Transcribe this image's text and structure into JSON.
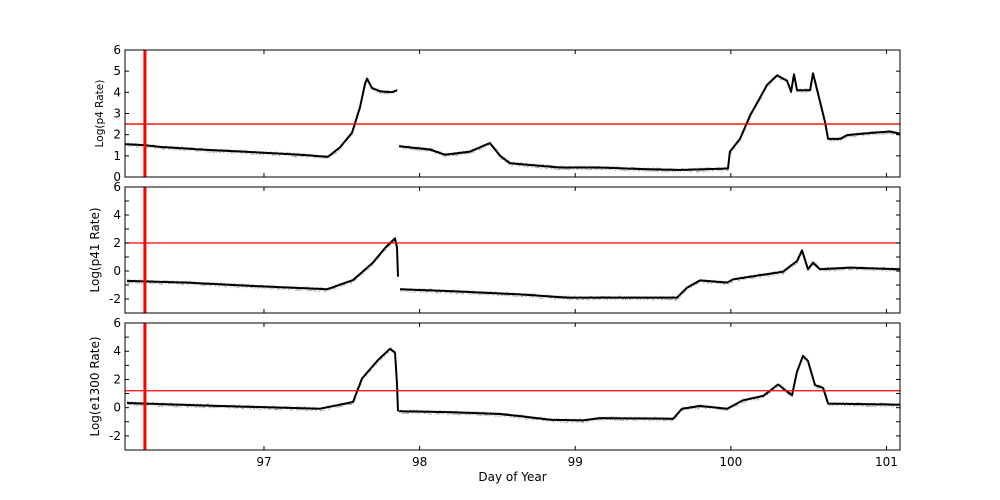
{
  "chart_data": [
    {
      "type": "line",
      "ylabel": "Log(p4 Rate)",
      "xlim": [
        96.107,
        101.087
      ],
      "ylim": [
        0,
        6
      ],
      "yticks": [
        0,
        1,
        2,
        3,
        4,
        5,
        6
      ],
      "ytick_labels": [
        "0",
        "1",
        "2",
        "3",
        "4",
        "5",
        "6"
      ],
      "xticks": [
        97,
        98,
        99,
        100,
        101
      ],
      "threshold_y": 2.5,
      "marker_x": 96.235,
      "series": [
        {
          "segments": [
            [
              [
                96.107,
                1.55
              ],
              [
                96.235,
                1.5
              ],
              [
                96.332,
                1.42
              ],
              [
                96.589,
                1.3
              ],
              [
                97.0,
                1.15
              ],
              [
                97.231,
                1.05
              ],
              [
                97.411,
                0.95
              ],
              [
                97.488,
                1.4
              ],
              [
                97.566,
                2.1
              ],
              [
                97.617,
                3.3
              ],
              [
                97.649,
                4.4
              ],
              [
                97.662,
                4.65
              ],
              [
                97.694,
                4.2
              ],
              [
                97.746,
                4.05
              ],
              [
                97.823,
                4.0
              ],
              [
                97.855,
                4.1
              ]
            ],
            [
              [
                97.868,
                1.45
              ],
              [
                98.067,
                1.3
              ],
              [
                98.163,
                1.05
              ],
              [
                98.324,
                1.2
              ],
              [
                98.452,
                1.6
              ],
              [
                98.517,
                1.0
              ],
              [
                98.581,
                0.65
              ],
              [
                98.902,
                0.45
              ],
              [
                99.159,
                0.45
              ],
              [
                99.416,
                0.38
              ],
              [
                99.674,
                0.33
              ],
              [
                99.982,
                0.4
              ],
              [
                99.994,
                1.2
              ],
              [
                100.059,
                1.8
              ],
              [
                100.123,
                2.9
              ],
              [
                100.233,
                4.35
              ],
              [
                100.297,
                4.8
              ],
              [
                100.361,
                4.55
              ],
              [
                100.387,
                4.03
              ],
              [
                100.406,
                4.85
              ],
              [
                100.425,
                4.1
              ],
              [
                100.509,
                4.1
              ],
              [
                100.528,
                4.9
              ],
              [
                100.573,
                3.56
              ],
              [
                100.605,
                2.6
              ],
              [
                100.625,
                1.8
              ],
              [
                100.702,
                1.8
              ],
              [
                100.747,
                1.98
              ],
              [
                100.895,
                2.08
              ],
              [
                101.023,
                2.15
              ],
              [
                101.087,
                2.04
              ]
            ]
          ]
        }
      ]
    },
    {
      "type": "line",
      "ylabel": "Log(p41 Rate)",
      "xlim": [
        96.107,
        101.087
      ],
      "ylim": [
        -3,
        6
      ],
      "yticks": [
        -2,
        0,
        2,
        4,
        6
      ],
      "ytick_labels": [
        "-2",
        "0",
        "2",
        "4",
        "6"
      ],
      "xticks": [
        97,
        98,
        99,
        100,
        101
      ],
      "threshold_y": 2,
      "marker_x": 96.235,
      "series": [
        {
          "segments": [
            [
              [
                96.12,
                -0.71
              ],
              [
                96.505,
                -0.83
              ],
              [
                96.929,
                -1.07
              ],
              [
                97.405,
                -1.31
              ],
              [
                97.572,
                -0.65
              ],
              [
                97.7,
                0.6
              ],
              [
                97.78,
                1.67
              ],
              [
                97.842,
                2.33
              ],
              [
                97.855,
                1.67
              ],
              [
                97.861,
                -0.4
              ]
            ],
            [
              [
                97.874,
                -1.31
              ],
              [
                98.215,
                -1.45
              ],
              [
                98.645,
                -1.67
              ],
              [
                98.947,
                -1.9
              ],
              [
                99.654,
                -1.9
              ],
              [
                99.718,
                -1.19
              ],
              [
                99.802,
                -0.67
              ],
              [
                99.976,
                -0.83
              ],
              [
                100.014,
                -0.6
              ],
              [
                100.335,
                -0.05
              ],
              [
                100.425,
                0.71
              ],
              [
                100.457,
                1.48
              ],
              [
                100.496,
                0.12
              ],
              [
                100.528,
                0.6
              ],
              [
                100.573,
                0.12
              ],
              [
                100.766,
                0.24
              ],
              [
                101.087,
                0.12
              ]
            ]
          ]
        }
      ]
    },
    {
      "type": "line",
      "ylabel": "Log(e1300 Rate)",
      "xlabel": "Day of Year",
      "xlim": [
        96.107,
        101.087
      ],
      "ylim": [
        -3,
        6
      ],
      "yticks": [
        -2,
        0,
        2,
        4,
        6
      ],
      "ytick_labels": [
        "-2",
        "0",
        "2",
        "4",
        "6"
      ],
      "xticks": [
        97,
        98,
        99,
        100,
        101
      ],
      "xtick_labels": [
        "97",
        "98",
        "99",
        "100",
        "101"
      ],
      "threshold_y": 1.2,
      "marker_x": 96.235,
      "series": [
        {
          "segments": [
            [
              [
                96.12,
                0.33
              ],
              [
                96.717,
                0.12
              ],
              [
                97.36,
                -0.07
              ],
              [
                97.572,
                0.4
              ],
              [
                97.63,
                2.07
              ],
              [
                97.733,
                3.38
              ],
              [
                97.81,
                4.17
              ],
              [
                97.842,
                3.9
              ],
              [
                97.855,
                1.7
              ],
              [
                97.861,
                -0.26
              ]
            ],
            [
              [
                97.868,
                -0.26
              ],
              [
                98.215,
                -0.33
              ],
              [
                98.517,
                -0.45
              ],
              [
                98.645,
                -0.6
              ],
              [
                98.838,
                -0.86
              ],
              [
                99.05,
                -0.9
              ],
              [
                99.159,
                -0.74
              ],
              [
                99.629,
                -0.79
              ],
              [
                99.686,
                -0.07
              ],
              [
                99.802,
                0.12
              ],
              [
                99.976,
                -0.07
              ],
              [
                100.078,
                0.52
              ],
              [
                100.207,
                0.83
              ],
              [
                100.303,
                1.64
              ],
              [
                100.393,
                0.88
              ],
              [
                100.425,
                2.55
              ],
              [
                100.464,
                3.67
              ],
              [
                100.496,
                3.3
              ],
              [
                100.541,
                1.6
              ],
              [
                100.593,
                1.4
              ],
              [
                100.625,
                0.29
              ],
              [
                101.087,
                0.21
              ]
            ]
          ]
        }
      ]
    }
  ],
  "colors": {
    "data": "#000000",
    "scatter": "#777777",
    "threshold": "#ff0000",
    "marker": "#ff0000"
  }
}
